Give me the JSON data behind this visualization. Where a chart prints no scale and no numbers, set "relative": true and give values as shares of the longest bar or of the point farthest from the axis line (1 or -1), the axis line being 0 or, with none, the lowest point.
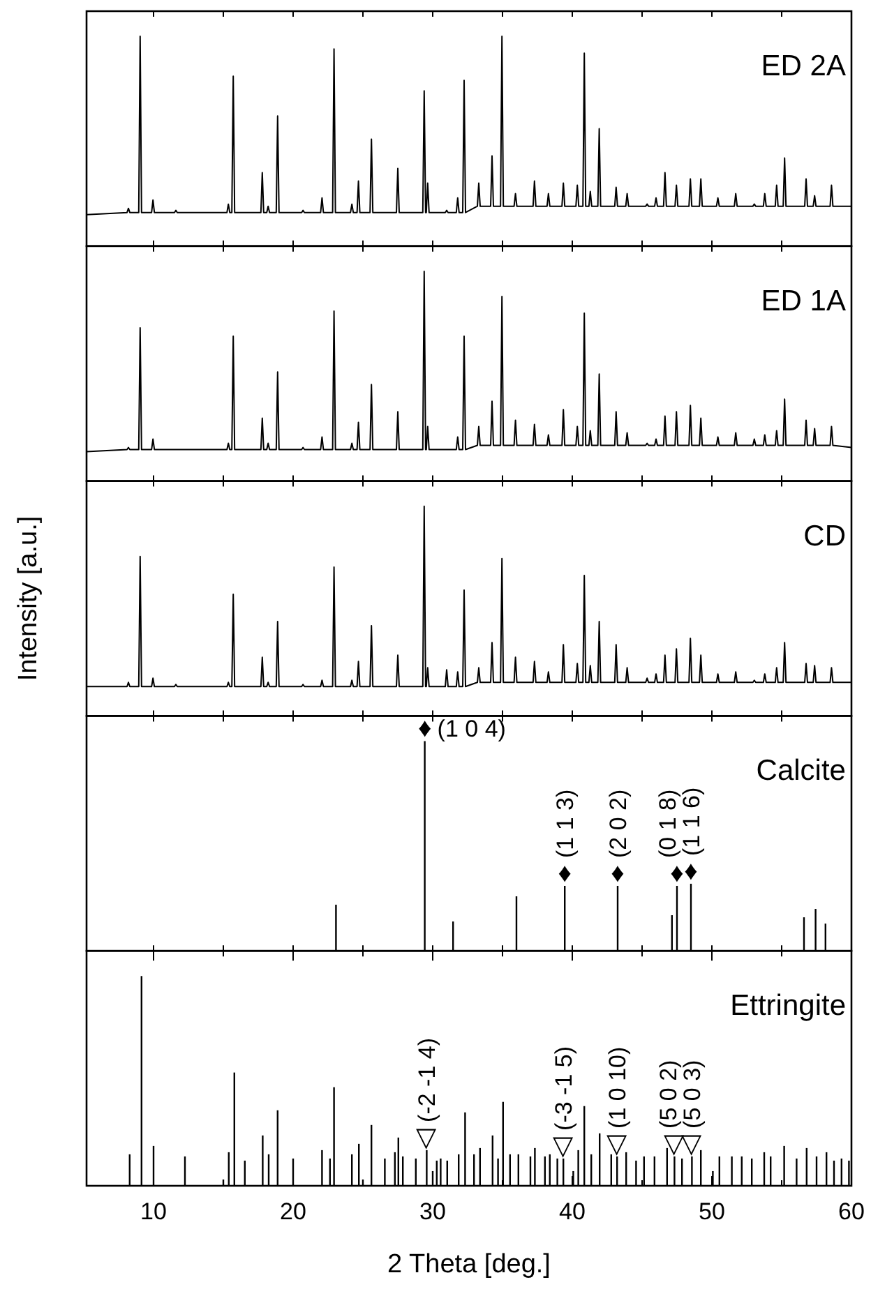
{
  "chart_data": [
    {
      "type": "line",
      "title": "ED 2A",
      "relative": true,
      "color": "#000000",
      "xlim": [
        5.2,
        60
      ],
      "xticks": [
        {
          "value": 10,
          "label": null
        },
        {
          "value": 15,
          "label": null
        },
        {
          "value": 20,
          "label": null
        },
        {
          "value": 25,
          "label": null
        },
        {
          "value": 30,
          "label": null
        },
        {
          "value": 35,
          "label": null
        },
        {
          "value": 40,
          "label": null
        },
        {
          "value": 45,
          "label": null
        },
        {
          "value": 50,
          "label": null
        },
        {
          "value": 55,
          "label": null
        },
        {
          "value": 60,
          "label": null
        }
      ],
      "tick_labels": false,
      "x": [
        5.2,
        8.1,
        8.2,
        8.3,
        8.94,
        9.04,
        9.14,
        9.86,
        9.96,
        10.06,
        11.5,
        11.6,
        11.7,
        15.26,
        15.36,
        15.46,
        15.61,
        15.71,
        15.81,
        17.69,
        17.79,
        17.89,
        18.11,
        18.21,
        18.31,
        18.79,
        18.89,
        18.99,
        20.61,
        20.71,
        20.81,
        21.97,
        22.07,
        22.17,
        22.83,
        22.93,
        23.03,
        24.11,
        24.21,
        24.31,
        24.58,
        24.68,
        24.78,
        25.51,
        25.61,
        25.71,
        27.4,
        27.5,
        27.6,
        29.29,
        29.39,
        29.49,
        29.54,
        29.64,
        29.74,
        30.9,
        31.0,
        31.1,
        31.69,
        31.79,
        31.89,
        32.15,
        32.25,
        32.35,
        33.2,
        33.3,
        33.4,
        34.15,
        34.25,
        34.35,
        34.86,
        34.96,
        35.06,
        35.83,
        35.93,
        36.03,
        37.19,
        37.29,
        37.39,
        38.19,
        38.29,
        38.39,
        39.26,
        39.36,
        39.46,
        40.26,
        40.36,
        40.46,
        40.76,
        40.86,
        40.96,
        41.19,
        41.29,
        41.39,
        41.83,
        41.93,
        42.03,
        43.04,
        43.14,
        43.24,
        43.83,
        43.93,
        44.03,
        45.26,
        45.36,
        45.46,
        45.9,
        46.0,
        46.1,
        46.54,
        46.64,
        46.74,
        47.36,
        47.46,
        47.56,
        48.36,
        48.46,
        48.56,
        49.11,
        49.21,
        49.31,
        50.33,
        50.43,
        50.53,
        51.61,
        51.71,
        51.81,
        52.94,
        53.04,
        53.14,
        53.69,
        53.79,
        53.89,
        54.54,
        54.64,
        54.74,
        55.11,
        55.21,
        55.31,
        56.65,
        56.75,
        56.85,
        57.26,
        57.36,
        57.46,
        58.47,
        58.57,
        58.67,
        60
      ],
      "values": [
        0.15,
        0.16,
        0.18,
        0.16,
        0.16,
        1.0,
        0.16,
        0.16,
        0.22,
        0.16,
        0.16,
        0.17,
        0.16,
        0.16,
        0.2,
        0.16,
        0.16,
        0.81,
        0.16,
        0.16,
        0.35,
        0.16,
        0.16,
        0.19,
        0.16,
        0.16,
        0.62,
        0.16,
        0.16,
        0.17,
        0.16,
        0.16,
        0.23,
        0.16,
        0.16,
        0.94,
        0.16,
        0.16,
        0.2,
        0.16,
        0.16,
        0.31,
        0.16,
        0.16,
        0.51,
        0.16,
        0.16,
        0.37,
        0.16,
        0.16,
        0.74,
        0.16,
        0.16,
        0.3,
        0.16,
        0.16,
        0.17,
        0.16,
        0.16,
        0.23,
        0.16,
        0.16,
        0.79,
        0.16,
        0.19,
        0.3,
        0.19,
        0.19,
        0.43,
        0.19,
        0.19,
        1.0,
        0.19,
        0.19,
        0.25,
        0.19,
        0.19,
        0.31,
        0.19,
        0.19,
        0.25,
        0.19,
        0.19,
        0.3,
        0.19,
        0.19,
        0.29,
        0.19,
        0.19,
        0.92,
        0.19,
        0.19,
        0.26,
        0.19,
        0.19,
        0.56,
        0.19,
        0.19,
        0.28,
        0.19,
        0.19,
        0.25,
        0.19,
        0.19,
        0.2,
        0.19,
        0.19,
        0.23,
        0.19,
        0.19,
        0.35,
        0.19,
        0.19,
        0.29,
        0.19,
        0.19,
        0.32,
        0.19,
        0.19,
        0.32,
        0.19,
        0.19,
        0.23,
        0.19,
        0.19,
        0.25,
        0.19,
        0.19,
        0.2,
        0.19,
        0.19,
        0.25,
        0.19,
        0.19,
        0.29,
        0.19,
        0.19,
        0.42,
        0.19,
        0.19,
        0.32,
        0.19,
        0.19,
        0.24,
        0.19,
        0.19,
        0.29,
        0.19,
        0.19
      ]
    },
    {
      "type": "line",
      "title": "ED 1A",
      "relative": true,
      "color": "#000000",
      "xlim": [
        5.2,
        60
      ],
      "xticks": [
        {
          "value": 10,
          "label": null
        },
        {
          "value": 15,
          "label": null
        },
        {
          "value": 20,
          "label": null
        },
        {
          "value": 25,
          "label": null
        },
        {
          "value": 30,
          "label": null
        },
        {
          "value": 35,
          "label": null
        },
        {
          "value": 40,
          "label": null
        },
        {
          "value": 45,
          "label": null
        },
        {
          "value": 50,
          "label": null
        },
        {
          "value": 55,
          "label": null
        },
        {
          "value": 60,
          "label": null
        }
      ],
      "tick_labels": false,
      "x": [
        5.2,
        8.1,
        8.2,
        8.3,
        8.94,
        9.04,
        9.14,
        9.86,
        9.96,
        10.06,
        11.5,
        11.6,
        11.7,
        15.26,
        15.36,
        15.46,
        15.61,
        15.71,
        15.81,
        17.69,
        17.79,
        17.89,
        18.11,
        18.21,
        18.31,
        18.79,
        18.89,
        18.99,
        20.61,
        20.71,
        20.81,
        21.97,
        22.07,
        22.17,
        22.83,
        22.93,
        23.03,
        24.11,
        24.21,
        24.31,
        24.58,
        24.68,
        24.78,
        25.51,
        25.61,
        25.71,
        27.4,
        27.5,
        27.6,
        29.29,
        29.39,
        29.49,
        29.54,
        29.64,
        29.74,
        30.9,
        31.0,
        31.1,
        31.69,
        31.79,
        31.89,
        32.15,
        32.25,
        32.35,
        33.2,
        33.3,
        33.4,
        34.15,
        34.25,
        34.35,
        34.86,
        34.96,
        35.06,
        35.83,
        35.93,
        36.03,
        37.19,
        37.29,
        37.39,
        38.19,
        38.29,
        38.39,
        39.26,
        39.36,
        39.46,
        40.26,
        40.36,
        40.46,
        40.76,
        40.86,
        40.96,
        41.19,
        41.29,
        41.39,
        41.83,
        41.93,
        42.03,
        43.04,
        43.14,
        43.24,
        43.83,
        43.93,
        44.03,
        45.26,
        45.36,
        45.46,
        45.9,
        46.0,
        46.1,
        46.54,
        46.64,
        46.74,
        47.36,
        47.46,
        47.56,
        48.36,
        48.46,
        48.56,
        49.11,
        49.21,
        49.31,
        50.33,
        50.43,
        50.53,
        51.61,
        51.71,
        51.81,
        52.94,
        53.04,
        53.14,
        53.69,
        53.79,
        53.89,
        54.54,
        54.64,
        54.74,
        55.11,
        55.21,
        55.31,
        56.65,
        56.75,
        56.85,
        57.26,
        57.36,
        57.46,
        58.47,
        58.57,
        58.67,
        60
      ],
      "values": [
        0.14,
        0.15,
        0.16,
        0.15,
        0.15,
        0.73,
        0.15,
        0.15,
        0.2,
        0.15,
        0.15,
        0.15,
        0.15,
        0.15,
        0.18,
        0.15,
        0.15,
        0.69,
        0.15,
        0.15,
        0.3,
        0.15,
        0.15,
        0.18,
        0.15,
        0.15,
        0.52,
        0.15,
        0.15,
        0.16,
        0.15,
        0.15,
        0.21,
        0.15,
        0.15,
        0.81,
        0.15,
        0.15,
        0.18,
        0.15,
        0.15,
        0.28,
        0.15,
        0.15,
        0.46,
        0.15,
        0.15,
        0.33,
        0.15,
        0.15,
        1.0,
        0.15,
        0.15,
        0.26,
        0.15,
        0.15,
        0.15,
        0.15,
        0.15,
        0.21,
        0.15,
        0.15,
        0.69,
        0.15,
        0.17,
        0.26,
        0.17,
        0.17,
        0.38,
        0.17,
        0.17,
        0.88,
        0.17,
        0.17,
        0.29,
        0.17,
        0.17,
        0.27,
        0.17,
        0.17,
        0.22,
        0.17,
        0.17,
        0.34,
        0.17,
        0.17,
        0.26,
        0.17,
        0.17,
        0.8,
        0.17,
        0.17,
        0.24,
        0.17,
        0.17,
        0.51,
        0.17,
        0.17,
        0.33,
        0.17,
        0.17,
        0.23,
        0.17,
        0.17,
        0.18,
        0.17,
        0.17,
        0.2,
        0.17,
        0.17,
        0.31,
        0.17,
        0.17,
        0.33,
        0.17,
        0.17,
        0.36,
        0.17,
        0.17,
        0.3,
        0.17,
        0.17,
        0.21,
        0.17,
        0.17,
        0.23,
        0.17,
        0.17,
        0.2,
        0.17,
        0.17,
        0.22,
        0.17,
        0.17,
        0.24,
        0.17,
        0.17,
        0.39,
        0.17,
        0.17,
        0.29,
        0.17,
        0.17,
        0.25,
        0.17,
        0.17,
        0.26,
        0.17,
        0.16
      ]
    },
    {
      "type": "line",
      "title": "CD",
      "ylabel": "Intensity [a.u.]",
      "relative": true,
      "color": "#000000",
      "xlim": [
        5.2,
        60
      ],
      "xticks": [
        {
          "value": 10,
          "label": null
        },
        {
          "value": 15,
          "label": null
        },
        {
          "value": 20,
          "label": null
        },
        {
          "value": 25,
          "label": null
        },
        {
          "value": 30,
          "label": null
        },
        {
          "value": 35,
          "label": null
        },
        {
          "value": 40,
          "label": null
        },
        {
          "value": 45,
          "label": null
        },
        {
          "value": 50,
          "label": null
        },
        {
          "value": 55,
          "label": null
        },
        {
          "value": 60,
          "label": null
        }
      ],
      "tick_labels": false,
      "x": [
        5.2,
        8.1,
        8.2,
        8.3,
        8.94,
        9.04,
        9.14,
        9.86,
        9.96,
        10.06,
        11.5,
        11.6,
        11.7,
        15.26,
        15.36,
        15.46,
        15.61,
        15.71,
        15.81,
        17.69,
        17.79,
        17.89,
        18.11,
        18.21,
        18.31,
        18.79,
        18.89,
        18.99,
        20.61,
        20.71,
        20.81,
        21.97,
        22.07,
        22.17,
        22.83,
        22.93,
        23.03,
        24.11,
        24.21,
        24.31,
        24.58,
        24.68,
        24.78,
        25.51,
        25.61,
        25.71,
        27.4,
        27.5,
        27.6,
        29.29,
        29.39,
        29.49,
        29.54,
        29.64,
        29.74,
        30.9,
        31.0,
        31.1,
        31.69,
        31.79,
        31.89,
        32.15,
        32.25,
        32.35,
        33.2,
        33.3,
        33.4,
        34.15,
        34.25,
        34.35,
        34.86,
        34.96,
        35.06,
        35.83,
        35.93,
        36.03,
        37.19,
        37.29,
        37.39,
        38.19,
        38.29,
        38.39,
        39.26,
        39.36,
        39.46,
        40.26,
        40.36,
        40.46,
        40.76,
        40.86,
        40.96,
        41.19,
        41.29,
        41.39,
        41.83,
        41.93,
        42.03,
        43.04,
        43.14,
        43.24,
        43.83,
        43.93,
        44.03,
        45.26,
        45.36,
        45.46,
        45.9,
        46.0,
        46.1,
        46.54,
        46.64,
        46.74,
        47.36,
        47.46,
        47.56,
        48.36,
        48.46,
        48.56,
        49.11,
        49.21,
        49.31,
        50.33,
        50.43,
        50.53,
        51.61,
        51.71,
        51.81,
        52.94,
        53.04,
        53.14,
        53.69,
        53.79,
        53.89,
        54.54,
        54.64,
        54.74,
        55.11,
        55.21,
        55.31,
        56.65,
        56.75,
        56.85,
        57.26,
        57.36,
        57.46,
        58.47,
        58.57,
        58.67,
        60
      ],
      "values": [
        0.14,
        0.14,
        0.16,
        0.14,
        0.14,
        0.76,
        0.14,
        0.14,
        0.18,
        0.14,
        0.14,
        0.15,
        0.14,
        0.14,
        0.16,
        0.14,
        0.14,
        0.58,
        0.14,
        0.14,
        0.28,
        0.14,
        0.14,
        0.16,
        0.14,
        0.14,
        0.45,
        0.14,
        0.14,
        0.15,
        0.14,
        0.14,
        0.17,
        0.14,
        0.14,
        0.71,
        0.14,
        0.14,
        0.17,
        0.14,
        0.14,
        0.26,
        0.14,
        0.14,
        0.43,
        0.14,
        0.14,
        0.29,
        0.14,
        0.14,
        1.0,
        0.14,
        0.14,
        0.23,
        0.14,
        0.14,
        0.22,
        0.14,
        0.14,
        0.21,
        0.14,
        0.14,
        0.6,
        0.14,
        0.16,
        0.23,
        0.16,
        0.16,
        0.35,
        0.16,
        0.16,
        0.75,
        0.16,
        0.16,
        0.28,
        0.16,
        0.16,
        0.26,
        0.16,
        0.16,
        0.21,
        0.16,
        0.16,
        0.34,
        0.16,
        0.16,
        0.25,
        0.16,
        0.16,
        0.67,
        0.16,
        0.16,
        0.24,
        0.16,
        0.16,
        0.45,
        0.16,
        0.16,
        0.34,
        0.16,
        0.16,
        0.23,
        0.16,
        0.16,
        0.18,
        0.16,
        0.16,
        0.2,
        0.16,
        0.16,
        0.29,
        0.16,
        0.16,
        0.32,
        0.16,
        0.16,
        0.37,
        0.16,
        0.16,
        0.29,
        0.16,
        0.16,
        0.2,
        0.16,
        0.16,
        0.21,
        0.16,
        0.16,
        0.17,
        0.16,
        0.16,
        0.2,
        0.16,
        0.16,
        0.23,
        0.16,
        0.16,
        0.35,
        0.16,
        0.16,
        0.25,
        0.16,
        0.16,
        0.24,
        0.16,
        0.16,
        0.23,
        0.16,
        0.16
      ]
    },
    {
      "type": "bar",
      "title": "Calcite",
      "relative": true,
      "color": "#000000",
      "xlim": [
        5.2,
        60
      ],
      "xticks": [
        {
          "value": 10,
          "label": null
        },
        {
          "value": 15,
          "label": null
        },
        {
          "value": 20,
          "label": null
        },
        {
          "value": 25,
          "label": null
        },
        {
          "value": 30,
          "label": null
        },
        {
          "value": 35,
          "label": null
        },
        {
          "value": 40,
          "label": null
        },
        {
          "value": 45,
          "label": null
        },
        {
          "value": 50,
          "label": null
        },
        {
          "value": 55,
          "label": null
        },
        {
          "value": 60,
          "label": null
        }
      ],
      "tick_labels": false,
      "x": [
        23.07,
        29.43,
        31.46,
        36.0,
        39.46,
        43.25,
        47.14,
        47.5,
        48.5,
        56.6,
        57.43,
        58.14
      ],
      "values": [
        0.22,
        1.0,
        0.14,
        0.26,
        0.31,
        0.31,
        0.17,
        0.31,
        0.32,
        0.16,
        0.2,
        0.13
      ],
      "annotations": [
        {
          "text": "♦(1 0 4)",
          "x": 29.43,
          "y": 1.0
        },
        {
          "text": "♦(1 1 3)",
          "x": 39.46,
          "y": 0.31
        },
        {
          "text": "♦(2 0 2)",
          "x": 43.25,
          "y": 0.31
        },
        {
          "text": "♦(0 1 8)",
          "x": 47.5,
          "y": 0.31
        },
        {
          "text": "♦(1 1 6)",
          "x": 48.5,
          "y": 0.32
        }
      ]
    },
    {
      "type": "bar",
      "title": "Ettringite",
      "xlabel": "2 Theta [deg.]",
      "relative": true,
      "color": "#000000",
      "xlim": [
        5.2,
        60
      ],
      "xticks": [
        10,
        {
          "value": 15,
          "label": null
        },
        20,
        {
          "value": 25,
          "label": null
        },
        30,
        {
          "value": 35,
          "label": null
        },
        40,
        {
          "value": 45,
          "label": null
        },
        50,
        {
          "value": 55,
          "label": null
        },
        60
      ],
      "tick_labels": "x",
      "x": [
        8.29,
        9.14,
        10.0,
        12.25,
        15.0,
        15.39,
        15.79,
        16.54,
        17.82,
        18.25,
        18.89,
        20.0,
        22.07,
        22.64,
        22.93,
        24.21,
        24.71,
        25.0,
        25.61,
        26.57,
        27.29,
        27.54,
        27.86,
        28.79,
        29.57,
        30.0,
        30.29,
        30.57,
        31.04,
        31.86,
        32.32,
        32.96,
        33.39,
        34.29,
        34.68,
        35.04,
        35.54,
        36.14,
        37.0,
        37.32,
        38.04,
        38.39,
        38.93,
        39.36,
        40.07,
        40.43,
        40.86,
        41.36,
        41.96,
        42.79,
        43.21,
        43.86,
        44.57,
        45.14,
        45.89,
        46.79,
        47.32,
        47.86,
        48.57,
        49.21,
        50.07,
        50.54,
        51.43,
        52.14,
        52.86,
        53.75,
        54.21,
        55.18,
        56.07,
        56.79,
        57.5,
        58.21,
        58.75,
        59.29,
        59.82
      ],
      "values": [
        0.15,
        1.0,
        0.19,
        0.14,
        0.03,
        0.16,
        0.54,
        0.12,
        0.24,
        0.15,
        0.36,
        0.13,
        0.17,
        0.13,
        0.47,
        0.15,
        0.2,
        0.03,
        0.29,
        0.13,
        0.16,
        0.23,
        0.14,
        0.13,
        0.17,
        0.07,
        0.12,
        0.13,
        0.12,
        0.15,
        0.35,
        0.15,
        0.18,
        0.24,
        0.13,
        0.4,
        0.15,
        0.15,
        0.14,
        0.18,
        0.14,
        0.15,
        0.13,
        0.13,
        0.07,
        0.17,
        0.38,
        0.15,
        0.25,
        0.15,
        0.14,
        0.16,
        0.12,
        0.14,
        0.14,
        0.18,
        0.14,
        0.13,
        0.14,
        0.17,
        0.07,
        0.14,
        0.14,
        0.14,
        0.13,
        0.16,
        0.14,
        0.19,
        0.13,
        0.18,
        0.14,
        0.16,
        0.12,
        0.13,
        0.12
      ],
      "annotations": [
        {
          "text": "▽(-2 -1 4)",
          "x": 29.57,
          "y": 0.17
        },
        {
          "text": "▽(-3 -1 5)",
          "x": 39.36,
          "y": 0.13
        },
        {
          "text": "▽(1 0 10)",
          "x": 43.21,
          "y": 0.14
        },
        {
          "text": "▽(5 0 2)",
          "x": 47.32,
          "y": 0.14
        },
        {
          "text": "▽(5 0 3)",
          "x": 48.57,
          "y": 0.14
        }
      ]
    }
  ]
}
